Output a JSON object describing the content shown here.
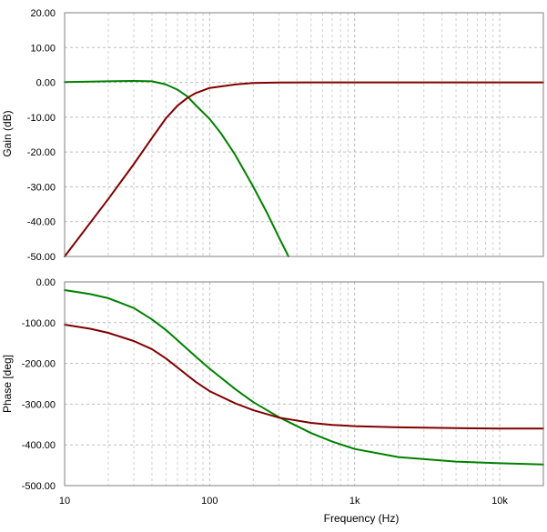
{
  "chart_data": [
    {
      "type": "line",
      "panel": "gain",
      "ylabel": "Gain (dB)",
      "xlabel": "",
      "x_scale": "log",
      "xlim": [
        10,
        20000
      ],
      "ylim": [
        -50,
        20
      ],
      "grid": true,
      "y_ticks": [
        "20.00",
        "10.00",
        "0.00",
        "-10.00",
        "-20.00",
        "-30.00",
        "-40.00",
        "-50.00"
      ],
      "colors": [
        "#008000",
        "#800000"
      ],
      "series": [
        {
          "x": [
            10,
            20,
            30,
            40,
            50,
            60,
            70,
            80,
            100,
            120,
            150,
            200,
            250,
            300,
            350
          ],
          "y": [
            0.1,
            0.3,
            0.4,
            0.3,
            -0.6,
            -2.1,
            -4.0,
            -6.5,
            -10.5,
            -14.7,
            -20.8,
            -30.0,
            -37.7,
            -44.5,
            -50.0
          ]
        },
        {
          "x": [
            10,
            20,
            30,
            40,
            50,
            60,
            70,
            80,
            100,
            150,
            200,
            300,
            500,
            1000,
            20000
          ],
          "y": [
            -50.0,
            -33.5,
            -23.5,
            -16.0,
            -10.3,
            -6.7,
            -4.5,
            -3.1,
            -1.6,
            -0.6,
            -0.2,
            -0.05,
            0,
            0,
            0
          ]
        }
      ]
    },
    {
      "type": "line",
      "panel": "phase",
      "ylabel": "Phase [deg]",
      "xlabel": "Frequency (Hz)",
      "x_scale": "log",
      "xlim": [
        10,
        20000
      ],
      "ylim": [
        -500,
        0
      ],
      "grid": true,
      "x_ticks": [
        "10",
        "100",
        "1k",
        "10k"
      ],
      "y_ticks": [
        "0.00",
        "-100.00",
        "-200.00",
        "-300.00",
        "-400.00",
        "-500.00"
      ],
      "colors": [
        "#008000",
        "#800000"
      ],
      "series": [
        {
          "x": [
            10,
            15,
            20,
            30,
            40,
            50,
            60,
            80,
            100,
            150,
            200,
            300,
            500,
            700,
            1000,
            2000,
            5000,
            10000,
            20000
          ],
          "y": [
            -20,
            -30,
            -40,
            -64,
            -92,
            -118,
            -143,
            -183,
            -213,
            -263,
            -295,
            -332,
            -371,
            -392,
            -410,
            -430,
            -441,
            -445,
            -448
          ]
        },
        {
          "x": [
            10,
            15,
            20,
            30,
            40,
            50,
            60,
            80,
            100,
            150,
            200,
            300,
            500,
            700,
            1000,
            2000,
            5000,
            10000,
            20000
          ],
          "y": [
            -105,
            -115,
            -125,
            -145,
            -165,
            -188,
            -210,
            -245,
            -268,
            -298,
            -315,
            -333,
            -346,
            -351,
            -354,
            -357,
            -359,
            -360,
            -360
          ]
        }
      ]
    }
  ]
}
